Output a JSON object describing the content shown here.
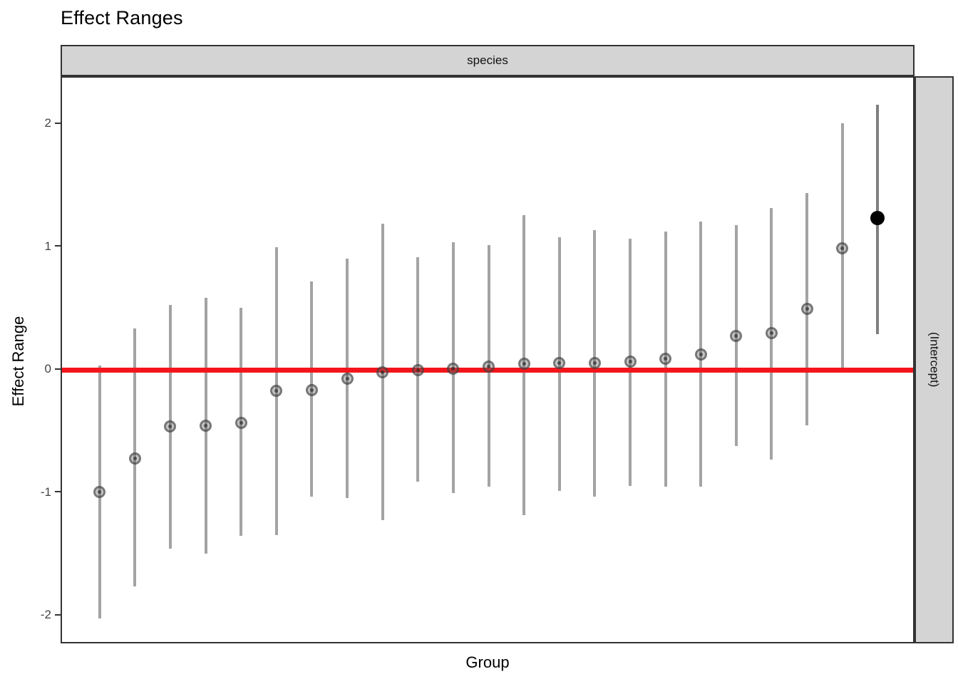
{
  "title": "Effect Ranges",
  "strips": {
    "top_label": "species",
    "right_label": "(Intercept)"
  },
  "axes": {
    "x_title": "Group",
    "y_title": "Effect Range"
  },
  "colors": {
    "reference_line": "#f4151b",
    "range_bar_gray": "#a3a3a3",
    "range_bar_dark": "#7f7f7f",
    "marker_fill": "rgba(100,100,100,0.38)",
    "marker_ring": "rgba(55,55,55,0.55)",
    "marker_core": "rgba(30,30,30,0.6)",
    "black_point": "#000000",
    "strip_fill": "#d4d4d4",
    "panel_border": "#333333"
  },
  "chart_data": {
    "type": "scatter",
    "subtype": "pointrange-caterpillar",
    "title": "Effect Ranges",
    "xlabel": "Group",
    "ylabel": "Effect Range",
    "facet_top": "species",
    "facet_right": "(Intercept)",
    "ylim": [
      -2.24,
      2.38
    ],
    "y_ticks": [
      2,
      1,
      0,
      -1,
      -2
    ],
    "x_tick_labels": [],
    "grid": "off",
    "legend": "none",
    "reference_line_y": 0,
    "n_groups": 23,
    "series": [
      {
        "name": "group-effects",
        "style": "gray-open-point",
        "points": [
          {
            "x": 1,
            "y": -0.99,
            "ymin": -2.02,
            "ymax": 0.04
          },
          {
            "x": 2,
            "y": -0.72,
            "ymin": -1.76,
            "ymax": 0.34
          },
          {
            "x": 3,
            "y": -0.46,
            "ymin": -1.45,
            "ymax": 0.53
          },
          {
            "x": 4,
            "y": -0.45,
            "ymin": -1.49,
            "ymax": 0.59
          },
          {
            "x": 5,
            "y": -0.43,
            "ymin": -1.35,
            "ymax": 0.51
          },
          {
            "x": 6,
            "y": -0.17,
            "ymin": -1.34,
            "ymax": 1.0
          },
          {
            "x": 7,
            "y": -0.16,
            "ymin": -1.03,
            "ymax": 0.72
          },
          {
            "x": 8,
            "y": -0.07,
            "ymin": -1.04,
            "ymax": 0.91
          },
          {
            "x": 9,
            "y": -0.02,
            "ymin": -1.22,
            "ymax": 1.19
          },
          {
            "x": 10,
            "y": 0.0,
            "ymin": -0.91,
            "ymax": 0.92
          },
          {
            "x": 11,
            "y": 0.01,
            "ymin": -1.0,
            "ymax": 1.04
          },
          {
            "x": 12,
            "y": 0.03,
            "ymin": -0.95,
            "ymax": 1.02
          },
          {
            "x": 13,
            "y": 0.05,
            "ymin": -1.18,
            "ymax": 1.26
          },
          {
            "x": 14,
            "y": 0.06,
            "ymin": -0.98,
            "ymax": 1.08
          },
          {
            "x": 15,
            "y": 0.06,
            "ymin": -1.03,
            "ymax": 1.14
          },
          {
            "x": 16,
            "y": 0.07,
            "ymin": -0.94,
            "ymax": 1.07
          },
          {
            "x": 17,
            "y": 0.09,
            "ymin": -0.95,
            "ymax": 1.13
          },
          {
            "x": 18,
            "y": 0.13,
            "ymin": -0.95,
            "ymax": 1.21
          },
          {
            "x": 19,
            "y": 0.28,
            "ymin": -0.62,
            "ymax": 1.18
          },
          {
            "x": 20,
            "y": 0.3,
            "ymin": -0.73,
            "ymax": 1.32
          },
          {
            "x": 21,
            "y": 0.5,
            "ymin": -0.45,
            "ymax": 1.44
          },
          {
            "x": 22,
            "y": 0.99,
            "ymin": 0.0,
            "ymax": 2.01
          }
        ]
      },
      {
        "name": "intercept-estimate",
        "style": "solid-black-point",
        "points": [
          {
            "x": 23,
            "y": 1.24,
            "ymin": 0.29,
            "ymax": 2.16
          }
        ]
      }
    ]
  }
}
